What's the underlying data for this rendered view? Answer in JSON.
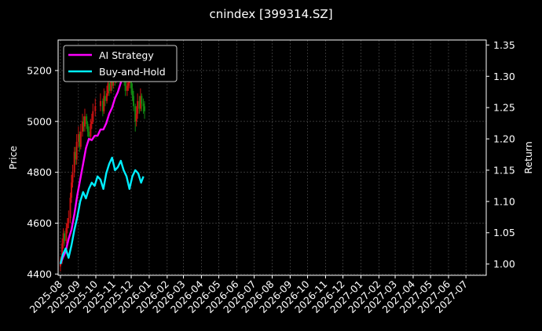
{
  "chart_data": {
    "type": "line",
    "title": "cnindex [399314.SZ]",
    "ylabel": "Price",
    "y2label": "Return",
    "ylim": [
      4395,
      5320
    ],
    "y2lim": [
      0.982,
      1.358
    ],
    "yticks": [
      4400,
      4600,
      4800,
      5000,
      5200
    ],
    "y2ticks": [
      1.0,
      1.05,
      1.1,
      1.15,
      1.2,
      1.25,
      1.3,
      1.35
    ],
    "y2tick_labels": [
      "1.00",
      "1.05",
      "1.10",
      "1.15",
      "1.20",
      "1.25",
      "1.30",
      "1.35"
    ],
    "grid": true,
    "legend": "top-left",
    "xlim": [
      "2025-07-28",
      "2027-08-05"
    ],
    "xticks": [
      "2025-08",
      "2025-09",
      "2025-10",
      "2025-11",
      "2025-12",
      "2026-01",
      "2026-02",
      "2026-03",
      "2026-04",
      "2026-05",
      "2026-06",
      "2026-07",
      "2026-08",
      "2026-09",
      "2026-10",
      "2026-11",
      "2026-12",
      "2027-01",
      "2027-02",
      "2027-03",
      "2027-04",
      "2027-05",
      "2027-06",
      "2027-07"
    ],
    "candles": {
      "dates": [
        "2025-08-01",
        "2025-08-04",
        "2025-08-06",
        "2025-08-08",
        "2025-08-11",
        "2025-08-13",
        "2025-08-15",
        "2025-08-18",
        "2025-08-20",
        "2025-08-22",
        "2025-08-25",
        "2025-08-27",
        "2025-08-29",
        "2025-09-01",
        "2025-09-03",
        "2025-09-05",
        "2025-09-08",
        "2025-09-10",
        "2025-09-12",
        "2025-09-15",
        "2025-09-17",
        "2025-09-19",
        "2025-09-22",
        "2025-09-24",
        "2025-09-26",
        "2025-09-30",
        "2025-10-09",
        "2025-10-13",
        "2025-10-15",
        "2025-10-17",
        "2025-10-20",
        "2025-10-22",
        "2025-10-24",
        "2025-10-27",
        "2025-10-29",
        "2025-10-31",
        "2025-11-03",
        "2025-11-05",
        "2025-11-07",
        "2025-11-10",
        "2025-11-12",
        "2025-11-14",
        "2025-11-17",
        "2025-11-19",
        "2025-11-21",
        "2025-11-24",
        "2025-11-26",
        "2025-11-28",
        "2025-12-01",
        "2025-12-03",
        "2025-12-05",
        "2025-12-08",
        "2025-12-10",
        "2025-12-12",
        "2025-12-15",
        "2025-12-17",
        "2025-12-19",
        "2025-12-22",
        "2025-12-24"
      ],
      "open": [
        4430,
        4455,
        4520,
        4560,
        4530,
        4580,
        4600,
        4620,
        4700,
        4760,
        4800,
        4880,
        4850,
        4920,
        4950,
        4900,
        4960,
        5000,
        4980,
        5020,
        4990,
        4960,
        4940,
        4990,
        5000,
        5040,
        5060,
        5080,
        5040,
        5100,
        5080,
        5110,
        5150,
        5120,
        5170,
        5140,
        5190,
        5160,
        5200,
        5180,
        5230,
        5210,
        5250,
        5200,
        5160,
        5120,
        5140,
        5150,
        5180,
        5130,
        5100,
        5060,
        5000,
        5030,
        5080,
        5050,
        5100,
        5070,
        5060
      ],
      "close": [
        4455,
        4520,
        4560,
        4530,
        4580,
        4600,
        4620,
        4700,
        4760,
        4800,
        4880,
        4850,
        4920,
        4950,
        4900,
        4960,
        5000,
        4980,
        5020,
        4990,
        4960,
        4940,
        4990,
        5000,
        5040,
        5060,
        5080,
        5040,
        5100,
        5080,
        5110,
        5150,
        5120,
        5170,
        5140,
        5190,
        5160,
        5200,
        5180,
        5230,
        5210,
        5250,
        5200,
        5160,
        5120,
        5140,
        5150,
        5180,
        5130,
        5100,
        5060,
        5000,
        5030,
        5080,
        5050,
        5100,
        5070,
        5060,
        5040
      ],
      "high": [
        4470,
        4540,
        4580,
        4570,
        4600,
        4620,
        4650,
        4720,
        4790,
        4830,
        4900,
        4900,
        4950,
        4980,
        4960,
        4990,
        5030,
        5020,
        5050,
        5030,
        5000,
        4980,
        5010,
        5030,
        5070,
        5090,
        5110,
        5090,
        5130,
        5120,
        5140,
        5180,
        5160,
        5200,
        5180,
        5220,
        5210,
        5230,
        5220,
        5260,
        5250,
        5290,
        5260,
        5210,
        5170,
        5170,
        5180,
        5210,
        5190,
        5150,
        5120,
        5070,
        5060,
        5110,
        5100,
        5130,
        5110,
        5090,
        5080
      ],
      "low": [
        4410,
        4440,
        4500,
        4510,
        4520,
        4560,
        4580,
        4600,
        4680,
        4740,
        4780,
        4830,
        4830,
        4900,
        4880,
        4890,
        4940,
        4960,
        4960,
        4970,
        4940,
        4920,
        4930,
        4970,
        4990,
        5020,
        5040,
        5020,
        5030,
        5060,
        5070,
        5100,
        5100,
        5110,
        5120,
        5130,
        5140,
        5150,
        5170,
        5170,
        5190,
        5200,
        5180,
        5140,
        5100,
        5100,
        5120,
        5130,
        5110,
        5080,
        5040,
        4960,
        4980,
        5010,
        5030,
        5040,
        5040,
        5030,
        5010
      ]
    },
    "series": [
      {
        "name": "AI Strategy",
        "color": "#ff00ff",
        "axis": "right",
        "x": [
          "2025-08-01",
          "2025-08-05",
          "2025-08-10",
          "2025-08-15",
          "2025-08-20",
          "2025-08-25",
          "2025-08-30",
          "2025-09-04",
          "2025-09-09",
          "2025-09-14",
          "2025-09-19",
          "2025-09-24",
          "2025-09-29",
          "2025-10-04",
          "2025-10-09",
          "2025-10-14",
          "2025-10-19",
          "2025-10-24",
          "2025-10-29",
          "2025-11-03",
          "2025-11-08",
          "2025-11-13",
          "2025-11-18",
          "2025-11-23",
          "2025-11-28",
          "2025-12-03",
          "2025-12-08",
          "2025-12-13",
          "2025-12-18",
          "2025-12-22"
        ],
        "values": [
          1.0,
          1.01,
          1.02,
          1.04,
          1.055,
          1.08,
          1.11,
          1.135,
          1.16,
          1.185,
          1.2,
          1.198,
          1.205,
          1.205,
          1.215,
          1.215,
          1.225,
          1.24,
          1.25,
          1.265,
          1.275,
          1.29,
          1.31,
          1.315,
          1.31,
          1.32,
          1.315,
          1.312,
          1.3,
          1.305
        ]
      },
      {
        "name": "Buy-and-Hold",
        "color": "#00eeff",
        "axis": "right",
        "x": [
          "2025-08-01",
          "2025-08-05",
          "2025-08-10",
          "2025-08-15",
          "2025-08-20",
          "2025-08-25",
          "2025-08-30",
          "2025-09-04",
          "2025-09-09",
          "2025-09-14",
          "2025-09-19",
          "2025-09-24",
          "2025-09-29",
          "2025-10-04",
          "2025-10-09",
          "2025-10-14",
          "2025-10-19",
          "2025-10-24",
          "2025-10-29",
          "2025-11-03",
          "2025-11-08",
          "2025-11-13",
          "2025-11-18",
          "2025-11-23",
          "2025-11-28",
          "2025-12-03",
          "2025-12-08",
          "2025-12-13",
          "2025-12-18",
          "2025-12-22"
        ],
        "values": [
          1.0,
          1.015,
          1.025,
          1.01,
          1.03,
          1.055,
          1.075,
          1.1,
          1.115,
          1.105,
          1.12,
          1.13,
          1.125,
          1.14,
          1.135,
          1.12,
          1.145,
          1.16,
          1.17,
          1.15,
          1.155,
          1.165,
          1.15,
          1.14,
          1.12,
          1.14,
          1.15,
          1.145,
          1.13,
          1.14
        ]
      }
    ]
  }
}
